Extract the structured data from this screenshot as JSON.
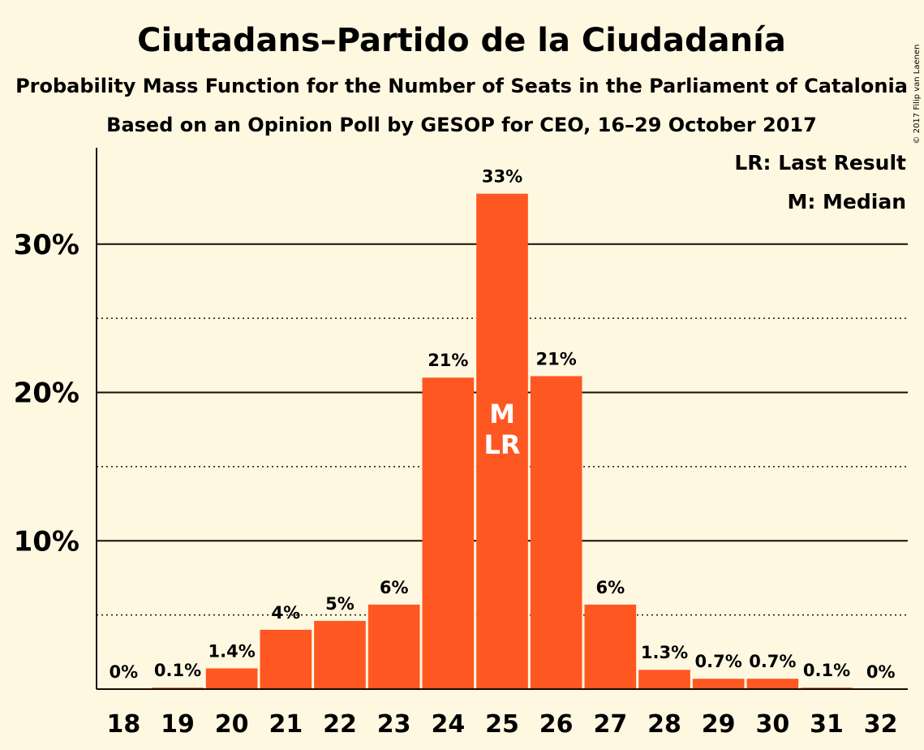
{
  "title": "Ciutadans–Partido de la Ciudadanía",
  "subtitle1": "Probability Mass Function for the Number of Seats in the Parliament of Catalonia",
  "subtitle2": "Based on an Opinion Poll by GESOP for CEO, 16–29 October 2017",
  "legend": {
    "last_result": "LR: Last Result",
    "median": "M: Median"
  },
  "copyright": "© 2017 Filip van Laenen",
  "colors": {
    "bar": "#ff5722",
    "background": "#fff8e1",
    "text": "#1a0a05"
  },
  "chart_data": {
    "type": "bar",
    "categories": [
      "18",
      "19",
      "20",
      "21",
      "22",
      "23",
      "24",
      "25",
      "26",
      "27",
      "28",
      "29",
      "30",
      "31",
      "32"
    ],
    "values": [
      0,
      0.1,
      1.4,
      4.0,
      4.6,
      5.7,
      21.0,
      33.4,
      21.1,
      5.7,
      1.3,
      0.7,
      0.7,
      0.1,
      0
    ],
    "labels": [
      "0%",
      "0.1%",
      "1.4%",
      "4%",
      "5%",
      "6%",
      "21%",
      "33%",
      "21%",
      "6%",
      "1.3%",
      "0.7%",
      "0.7%",
      "0.1%",
      "0%"
    ],
    "ylim": [
      0,
      36.5
    ],
    "yticks": [
      10,
      20,
      30
    ],
    "ytick_labels": [
      "10%",
      "20%",
      "30%"
    ],
    "minor_gridlines": [
      5,
      15,
      25
    ],
    "median_seat": "25",
    "last_result_seat": "25",
    "median_mark": "M",
    "last_result_mark": "LR",
    "xlabel": "",
    "ylabel": ""
  }
}
